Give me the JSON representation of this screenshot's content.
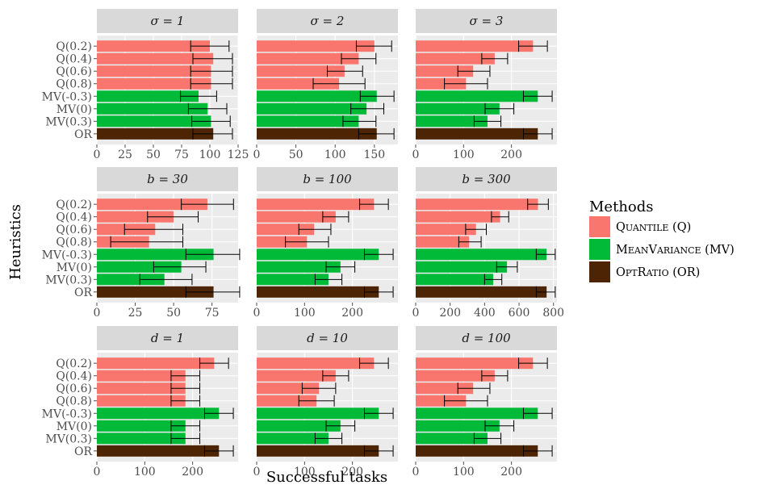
{
  "chart_data": {
    "type": "bar",
    "orientation": "horizontal",
    "xlabel": "Successful tasks",
    "ylabel": "Heuristics",
    "categories": [
      "Q(0.2)",
      "Q(0.4)",
      "Q(0.6)",
      "Q(0.8)",
      "MV(-0.3)",
      "MV(0)",
      "MV(0.3)",
      "OR"
    ],
    "category_method": [
      "Q",
      "Q",
      "Q",
      "Q",
      "MV",
      "MV",
      "MV",
      "OR"
    ],
    "legend": {
      "title": "Methods",
      "placement": "right",
      "entries": [
        {
          "key": "Q",
          "prefix_big": "Q",
          "smallcaps": "uantile",
          "suffix": " (Q)",
          "color": "#f8766d"
        },
        {
          "key": "MV",
          "prefix_big": "M",
          "smallcaps": "ean",
          "prefix_big2": "V",
          "smallcaps2": "ariance",
          "suffix": " (MV)",
          "color": "#00ba38"
        },
        {
          "key": "OR",
          "prefix_big": "O",
          "smallcaps": "pt",
          "prefix_big2": "R",
          "smallcaps2": "atio",
          "suffix": " (OR)",
          "color": "#4e2504"
        }
      ]
    },
    "colors": {
      "panel_bg": "#ebebeb",
      "strip_bg": "#d9d9d9",
      "grid": "#ffffff",
      "error_bar": "#000000"
    },
    "panels": [
      {
        "label": "σ = 1",
        "xlim": [
          0,
          125
        ],
        "xticks": [
          0,
          25,
          50,
          75,
          100,
          125
        ],
        "values": [
          100,
          103,
          101,
          101,
          90,
          98,
          101,
          103
        ],
        "err_low": [
          83,
          85,
          83,
          83,
          74,
          81,
          84,
          85
        ],
        "err_high": [
          117,
          120,
          120,
          120,
          106,
          115,
          118,
          120
        ]
      },
      {
        "label": "σ = 2",
        "xlim": [
          0,
          180
        ],
        "xticks": [
          0,
          50,
          100,
          150
        ],
        "values": [
          150,
          130,
          112,
          105,
          153,
          140,
          130,
          153
        ],
        "err_low": [
          127,
          108,
          90,
          72,
          132,
          120,
          110,
          130
        ],
        "err_high": [
          172,
          152,
          135,
          138,
          175,
          162,
          152,
          175
        ]
      },
      {
        "label": "σ = 3",
        "xlim": [
          0,
          295
        ],
        "xticks": [
          0,
          100,
          200
        ],
        "values": [
          245,
          165,
          120,
          105,
          255,
          175,
          150,
          255
        ],
        "err_low": [
          215,
          138,
          88,
          60,
          225,
          145,
          122,
          225
        ],
        "err_high": [
          275,
          192,
          155,
          150,
          285,
          205,
          178,
          285
        ]
      },
      {
        "label": "b = 30",
        "xlim": [
          0,
          92
        ],
        "xticks": [
          0,
          25,
          50,
          75
        ],
        "values": [
          72,
          50,
          38,
          34,
          76,
          55,
          44,
          76
        ],
        "err_low": [
          55,
          33,
          18,
          9,
          58,
          37,
          28,
          58
        ],
        "err_high": [
          89,
          66,
          56,
          56,
          93,
          71,
          62,
          93
        ]
      },
      {
        "label": "b = 100",
        "xlim": [
          0,
          295
        ],
        "xticks": [
          0,
          100,
          200
        ],
        "values": [
          245,
          165,
          120,
          105,
          255,
          175,
          150,
          255
        ],
        "err_low": [
          215,
          138,
          88,
          60,
          225,
          145,
          122,
          225
        ],
        "err_high": [
          275,
          192,
          155,
          150,
          285,
          205,
          178,
          285
        ]
      },
      {
        "label": "b = 300",
        "xlim": [
          0,
          820
        ],
        "xticks": [
          0,
          200,
          400,
          600,
          800
        ],
        "values": [
          710,
          490,
          350,
          310,
          760,
          530,
          450,
          760
        ],
        "err_low": [
          650,
          440,
          290,
          250,
          700,
          470,
          400,
          700
        ],
        "err_high": [
          770,
          540,
          410,
          380,
          810,
          590,
          500,
          810
        ]
      },
      {
        "label": "d = 1",
        "xlim": [
          0,
          295
        ],
        "xticks": [
          0,
          100,
          200
        ],
        "values": [
          245,
          185,
          185,
          185,
          255,
          185,
          185,
          255
        ],
        "err_low": [
          215,
          155,
          155,
          155,
          225,
          155,
          155,
          225
        ],
        "err_high": [
          275,
          215,
          215,
          215,
          285,
          215,
          215,
          285
        ]
      },
      {
        "label": "d = 10",
        "xlim": [
          0,
          295
        ],
        "xticks": [
          0,
          100,
          200
        ],
        "values": [
          245,
          165,
          130,
          125,
          255,
          175,
          150,
          255
        ],
        "err_low": [
          215,
          138,
          95,
          88,
          225,
          145,
          122,
          225
        ],
        "err_high": [
          275,
          192,
          165,
          162,
          285,
          205,
          178,
          285
        ]
      },
      {
        "label": "d = 100",
        "xlim": [
          0,
          295
        ],
        "xticks": [
          0,
          100,
          200
        ],
        "values": [
          245,
          165,
          120,
          105,
          255,
          175,
          150,
          255
        ],
        "err_low": [
          215,
          138,
          88,
          60,
          225,
          145,
          122,
          225
        ],
        "err_high": [
          275,
          192,
          155,
          150,
          285,
          205,
          178,
          285
        ]
      }
    ]
  }
}
